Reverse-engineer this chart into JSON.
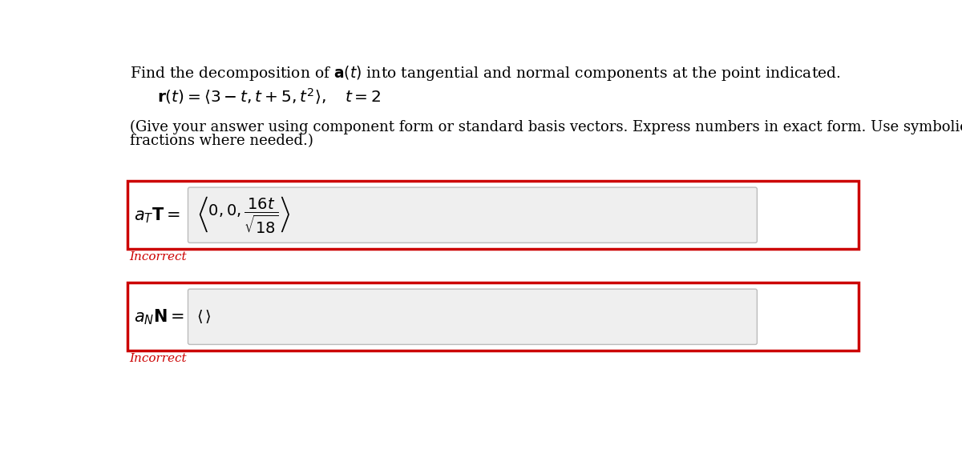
{
  "bg_color": "#ffffff",
  "title_text": "Find the decomposition of $\\mathbf{a}(t)$ into tangential and normal components at the point indicated.",
  "formula_text": "$\\mathbf{r}(t) = \\langle 3 - t, t + 5, t^2 \\rangle, \\quad t = 2$",
  "instruction_line1": "(Give your answer using component form or standard basis vectors. Express numbers in exact form. Use symbolic notation and",
  "instruction_line2": "fractions where needed.)",
  "label_aT": "$a_T\\mathbf{T} = $",
  "label_aN": "$a_N\\mathbf{N} = $",
  "aT_content": "$\\left\\langle 0, 0, \\dfrac{16t}{\\sqrt{18}} \\right\\rangle$",
  "aN_content": "$\\langle \\, \\rangle$",
  "incorrect_color": "#cc0000",
  "box_border_color": "#cc0000",
  "input_bg_color": "#efefef",
  "incorrect_text": "Incorrect"
}
